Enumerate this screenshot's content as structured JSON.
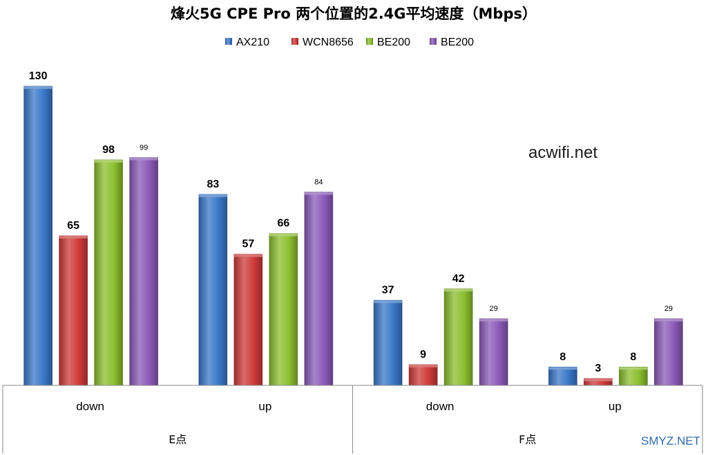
{
  "chart_data": {
    "type": "bar",
    "title": "烽火5G CPE Pro 两个位置的2.4G平均速度（Mbps）",
    "groups": [
      {
        "label": "E点",
        "categories": [
          "down",
          "up"
        ]
      },
      {
        "label": "F点",
        "categories": [
          "down",
          "up"
        ]
      }
    ],
    "categories": [
      "down",
      "up",
      "down",
      "up"
    ],
    "series": [
      {
        "name": "AX210",
        "color": "#3a78c9",
        "values": [
          130,
          83,
          37,
          8
        ]
      },
      {
        "name": "WCN8656",
        "color": "#cf3a3a",
        "values": [
          65,
          57,
          9,
          3
        ]
      },
      {
        "name": "BE200",
        "color": "#8cbf2f",
        "values": [
          98,
          66,
          42,
          8
        ]
      },
      {
        "name": "BE200",
        "color": "#8a5ab8",
        "values": [
          99,
          84,
          29,
          29
        ]
      }
    ],
    "ylim": [
      0,
      130
    ],
    "legend_position": "top",
    "grid": false
  },
  "watermarks": {
    "main": "acwifi.net",
    "corner": "SMYZ.NET"
  }
}
